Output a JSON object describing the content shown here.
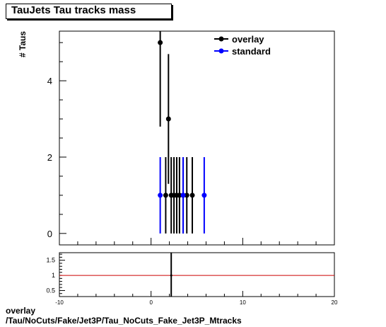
{
  "title": "TauJets Tau tracks mass",
  "footer": {
    "line1": "overlay",
    "line2": "/Tau/NoCuts/Fake/Jet3P/Tau_NoCuts_Fake_Jet3P_Mtracks"
  },
  "chart_data": [
    {
      "type": "scatter",
      "ylabel": "# Taus",
      "xlim": [
        -10,
        20
      ],
      "ylim": [
        -0.3,
        5.3
      ],
      "y_ticks": [
        0,
        2,
        4
      ],
      "x_tick_labels_shown": false,
      "legend_position": "top-right",
      "series": [
        {
          "name": "overlay",
          "color": "#000000",
          "points": [
            {
              "x": 1.0,
              "y": 5,
              "err": 2.2
            },
            {
              "x": 1.6,
              "y": 1,
              "err": 1.0
            },
            {
              "x": 1.9,
              "y": 3,
              "err": 1.7
            },
            {
              "x": 2.2,
              "y": 1,
              "err": 1.0
            },
            {
              "x": 2.5,
              "y": 1,
              "err": 1.0
            },
            {
              "x": 2.8,
              "y": 1,
              "err": 1.0
            },
            {
              "x": 3.1,
              "y": 1,
              "err": 1.0
            },
            {
              "x": 3.5,
              "y": 1,
              "err": 1.0
            },
            {
              "x": 3.9,
              "y": 1,
              "err": 1.0
            },
            {
              "x": 4.5,
              "y": 1,
              "err": 1.0
            }
          ]
        },
        {
          "name": "standard",
          "color": "#0000ff",
          "points": [
            {
              "x": 1.0,
              "y": 1,
              "err": 1.0
            },
            {
              "x": 3.5,
              "y": 1,
              "err": 1.0
            },
            {
              "x": 5.8,
              "y": 1,
              "err": 1.0
            }
          ]
        }
      ]
    },
    {
      "type": "line",
      "xlim": [
        -10,
        20
      ],
      "ylim": [
        0.3,
        1.75
      ],
      "x_ticks": [
        -10,
        0,
        10,
        20
      ],
      "y_ticks": [
        0.5,
        1,
        1.5
      ],
      "reference_line": {
        "y": 1,
        "color": "#cc0000"
      },
      "points": [
        {
          "x": 2.2,
          "y": 1.0,
          "err_low": 0.7,
          "err_high": 0.75
        }
      ]
    }
  ]
}
